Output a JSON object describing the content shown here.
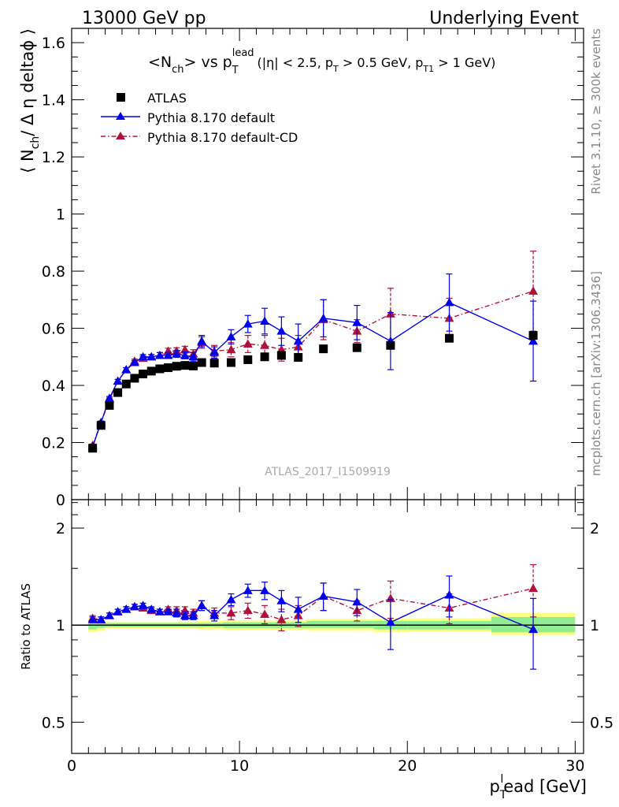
{
  "header": {
    "left": "13000 GeV pp",
    "right": "Underlying Event"
  },
  "side_labels": {
    "rivet": "Rivet 3.1.10, ≥ 300k events",
    "mcplots": "mcplots.cern.ch [arXiv:1306.3436]"
  },
  "plot_title": {
    "main": "<N",
    "main_sub": "ch",
    "vs": "> vs p",
    "vs_sup": "lead",
    "vs_sub": "T",
    "cuts": "(|η| < 2.5, p",
    "cuts_sub1": "T",
    "cuts_mid": " > 0.5 GeV, p",
    "cuts_sub2": "T1",
    "cuts_end": " > 1 GeV)"
  },
  "watermark": "ATLAS_2017_I1509919",
  "y_label_top": {
    "pre": "⟨ N",
    "sub": "ch",
    "post": "/ Δ η deltaϕ ⟩"
  },
  "y_label_bottom": "Ratio to ATLAS",
  "x_label": {
    "pre": "p",
    "sub": "T",
    "sup": "l",
    "post": "ead [GeV]"
  },
  "legend": {
    "atlas": "ATLAS",
    "pythia": "Pythia 8.170 default",
    "pythia_cd": "Pythia 8.170 default-CD"
  },
  "colors": {
    "atlas": "#000000",
    "pythia": "#0000ee",
    "pythia_cd": "#b0103a",
    "band_inner": "#90ee90",
    "band_outer": "#ffff80"
  },
  "chart_data": [
    {
      "type": "scatter",
      "panel": "main",
      "xlim": [
        0,
        30.5
      ],
      "ylim": [
        0,
        1.65
      ],
      "x_ticks": [
        0,
        10,
        20,
        30
      ],
      "y_ticks": [
        0,
        0.2,
        0.4,
        0.6,
        0.8,
        1,
        1.2,
        1.4,
        1.6
      ],
      "y_tick_labels": [
        "0",
        "0.2",
        "0.4",
        "0.6",
        "0.8",
        "1",
        "1.2",
        "1.4",
        "1.6"
      ],
      "x": [
        1.25,
        1.75,
        2.25,
        2.75,
        3.25,
        3.75,
        4.25,
        4.75,
        5.25,
        5.75,
        6.25,
        6.75,
        7.25,
        7.75,
        8.5,
        9.5,
        10.5,
        11.5,
        12.5,
        13.5,
        15,
        17,
        19,
        22.5,
        27.5
      ],
      "series": [
        {
          "name": "ATLAS",
          "marker": "square",
          "values": [
            0.18,
            0.26,
            0.33,
            0.375,
            0.405,
            0.425,
            0.44,
            0.45,
            0.458,
            0.462,
            0.467,
            0.47,
            0.468,
            0.48,
            0.478,
            0.48,
            0.49,
            0.5,
            0.505,
            0.498,
            0.528,
            0.532,
            0.54,
            0.565,
            0.575
          ]
        },
        {
          "name": "Pythia 8.170 default",
          "marker": "triangle",
          "line": "solid",
          "values": [
            0.185,
            0.27,
            0.355,
            0.415,
            0.455,
            0.48,
            0.5,
            0.5,
            0.505,
            0.505,
            0.51,
            0.505,
            0.5,
            0.555,
            0.515,
            0.57,
            0.615,
            0.625,
            0.59,
            0.555,
            0.635,
            0.62,
            0.555,
            0.69,
            0.555
          ],
          "errors": [
            0.005,
            0.005,
            0.006,
            0.006,
            0.007,
            0.007,
            0.008,
            0.008,
            0.01,
            0.01,
            0.012,
            0.012,
            0.015,
            0.02,
            0.02,
            0.025,
            0.03,
            0.045,
            0.05,
            0.06,
            0.065,
            0.06,
            0.1,
            0.1,
            0.14
          ]
        },
        {
          "name": "Pythia 8.170 default-CD",
          "marker": "triangle",
          "line": "dashdot",
          "values": [
            0.19,
            0.27,
            0.35,
            0.415,
            0.455,
            0.485,
            0.495,
            0.5,
            0.505,
            0.52,
            0.52,
            0.525,
            0.51,
            0.55,
            0.52,
            0.525,
            0.545,
            0.54,
            0.525,
            0.535,
            0.63,
            0.59,
            0.65,
            0.635,
            0.73
          ],
          "errors": [
            0.005,
            0.005,
            0.006,
            0.006,
            0.007,
            0.007,
            0.008,
            0.008,
            0.01,
            0.01,
            0.012,
            0.012,
            0.015,
            0.02,
            0.02,
            0.025,
            0.03,
            0.035,
            0.04,
            0.04,
            0.07,
            0.04,
            0.09,
            0.07,
            0.14
          ]
        }
      ]
    },
    {
      "type": "scatter",
      "panel": "ratio",
      "ylabel": "Ratio to ATLAS",
      "xlabel": "p_T^lead [GeV]",
      "scale": "log",
      "xlim": [
        0,
        30.5
      ],
      "ylim": [
        0.4,
        2.45
      ],
      "x_ticks": [
        0,
        10,
        20,
        30
      ],
      "y_ticks": [
        0.5,
        1,
        2
      ],
      "y_tick_labels": [
        "0.5",
        "1",
        "2"
      ],
      "band_x": [
        [
          1,
          1.5
        ],
        [
          1.5,
          2
        ],
        [
          2,
          7.5
        ],
        [
          7.5,
          9
        ],
        [
          9,
          14
        ],
        [
          14,
          18
        ],
        [
          18,
          20
        ],
        [
          20,
          25
        ],
        [
          25,
          30
        ]
      ],
      "band_inner": [
        [
          0.97,
          1.03
        ],
        [
          0.98,
          1.02
        ],
        [
          0.985,
          1.015
        ],
        [
          0.985,
          1.015
        ],
        [
          0.98,
          1.02
        ],
        [
          0.98,
          1.03
        ],
        [
          0.97,
          1.03
        ],
        [
          0.97,
          1.03
        ],
        [
          0.95,
          1.06
        ]
      ],
      "band_outer": [
        [
          0.95,
          1.05
        ],
        [
          0.96,
          1.04
        ],
        [
          0.975,
          1.025
        ],
        [
          0.97,
          1.03
        ],
        [
          0.965,
          1.035
        ],
        [
          0.96,
          1.045
        ],
        [
          0.95,
          1.05
        ],
        [
          0.955,
          1.05
        ],
        [
          0.93,
          1.09
        ]
      ],
      "x": [
        1.25,
        1.75,
        2.25,
        2.75,
        3.25,
        3.75,
        4.25,
        4.75,
        5.25,
        5.75,
        6.25,
        6.75,
        7.25,
        7.75,
        8.5,
        9.5,
        10.5,
        11.5,
        12.5,
        13.5,
        15,
        17,
        19,
        22.5,
        27.5
      ],
      "series": [
        {
          "name": "Pythia 8.170 default",
          "values": [
            1.04,
            1.04,
            1.07,
            1.1,
            1.12,
            1.14,
            1.15,
            1.12,
            1.1,
            1.1,
            1.09,
            1.07,
            1.07,
            1.15,
            1.07,
            1.2,
            1.28,
            1.28,
            1.19,
            1.12,
            1.23,
            1.18,
            1.02,
            1.24,
            0.97
          ],
          "errors": [
            0.02,
            0.02,
            0.02,
            0.02,
            0.02,
            0.02,
            0.02,
            0.02,
            0.02,
            0.02,
            0.03,
            0.03,
            0.03,
            0.04,
            0.04,
            0.05,
            0.06,
            0.08,
            0.09,
            0.1,
            0.12,
            0.11,
            0.18,
            0.18,
            0.24
          ]
        },
        {
          "name": "Pythia 8.170 default-CD",
          "values": [
            1.05,
            1.04,
            1.07,
            1.1,
            1.12,
            1.14,
            1.13,
            1.11,
            1.1,
            1.12,
            1.11,
            1.11,
            1.09,
            1.15,
            1.09,
            1.09,
            1.11,
            1.08,
            1.04,
            1.07,
            1.23,
            1.11,
            1.21,
            1.13,
            1.3
          ],
          "errors": [
            0.02,
            0.02,
            0.02,
            0.02,
            0.02,
            0.02,
            0.02,
            0.02,
            0.02,
            0.02,
            0.03,
            0.03,
            0.03,
            0.04,
            0.04,
            0.05,
            0.06,
            0.07,
            0.08,
            0.08,
            0.12,
            0.08,
            0.16,
            0.12,
            0.24
          ]
        }
      ]
    }
  ]
}
